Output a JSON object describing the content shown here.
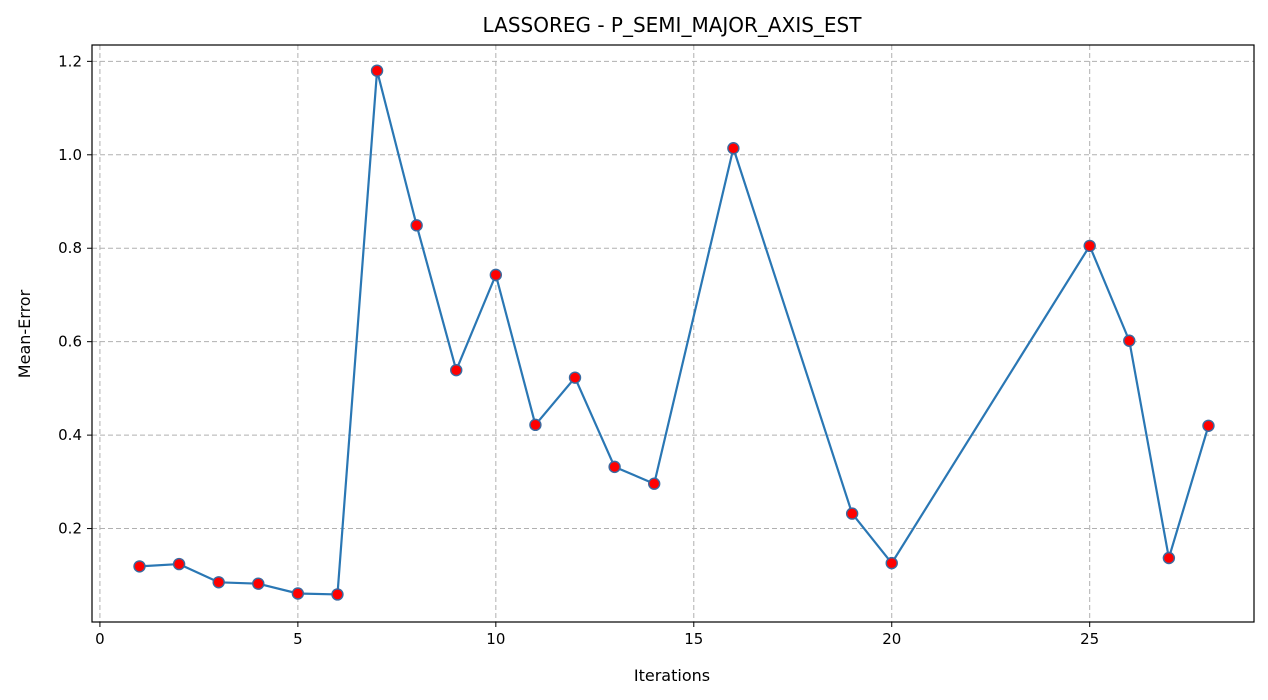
{
  "chart_data": {
    "type": "line",
    "title": "LASSOREG - P_SEMI_MAJOR_AXIS_EST",
    "xlabel": "Iterations",
    "ylabel": "Mean-Error",
    "xlim": [
      -0.2,
      29.15
    ],
    "ylim": [
      0.0,
      1.235
    ],
    "xticks": [
      0,
      5,
      10,
      15,
      20,
      25
    ],
    "yticks": [
      0.2,
      0.4,
      0.6,
      0.8,
      1.0,
      1.2
    ],
    "xtick_labels": [
      "0",
      "5",
      "10",
      "15",
      "20",
      "25"
    ],
    "ytick_labels": [
      "0.2",
      "0.4",
      "0.6",
      "0.8",
      "1.0",
      "1.2"
    ],
    "grid": true,
    "series": [
      {
        "x": [
          1,
          2,
          3,
          4,
          5,
          6,
          7,
          8,
          9,
          10,
          11,
          12,
          13,
          14,
          16,
          19,
          20,
          25,
          26,
          27,
          28
        ],
        "y": [
          0.119,
          0.124,
          0.085,
          0.082,
          0.061,
          0.059,
          1.18,
          0.849,
          0.539,
          0.743,
          0.422,
          0.523,
          0.332,
          0.296,
          1.014,
          0.232,
          0.126,
          0.805,
          0.602,
          0.137,
          0.42
        ],
        "line_color": "#2a77b4",
        "marker_face_color": "#ff0000",
        "marker_edge_color": "#3a6aa0"
      }
    ]
  }
}
